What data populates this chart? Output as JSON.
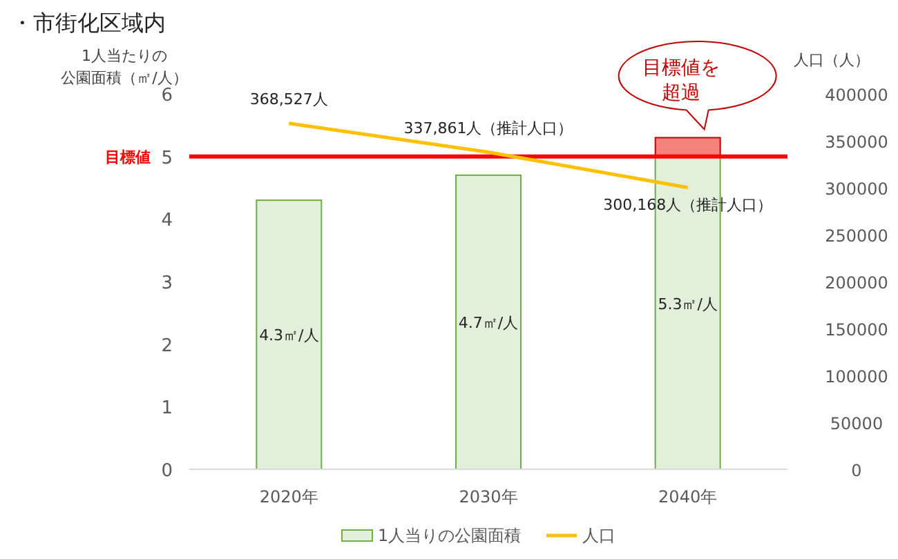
{
  "chart_data": {
    "type": "bar",
    "title": "・市街化区域内",
    "ylabel": "1人当たりの公園面積（㎡/人）",
    "y2label": "人口（人）",
    "categories": [
      "2020年",
      "2030年",
      "2040年"
    ],
    "stacked": true,
    "series": [
      {
        "name": "1人当りの公園面積",
        "color": "#e2efda",
        "values": [
          4.3,
          4.7,
          5.0
        ]
      },
      {
        "color": "#f4817b",
        "values": [
          null,
          null,
          0.3
        ]
      },
      {
        "name": "人口",
        "type": "line",
        "axis": "y2",
        "color": "#ffc000",
        "values": [
          368527,
          337861,
          300168
        ],
        "value_labels": [
          "368,527人",
          "337,861人（推計人口）",
          "300,168人（推計人口）"
        ]
      }
    ],
    "totals": [
      "4.3㎡/人",
      "4.7㎡/人",
      "5.3㎡/人"
    ],
    "ylim": [
      0,
      6
    ],
    "yticks": [
      0,
      1,
      2,
      3,
      4,
      5,
      6
    ],
    "y2lim": [
      0,
      400000
    ],
    "y2ticks": [
      0,
      50000,
      100000,
      150000,
      200000,
      250000,
      300000,
      350000,
      400000
    ],
    "ref_lines": [
      {
        "axis": "y",
        "value": 5,
        "label": "目標値",
        "color": "#ff0000"
      }
    ],
    "annotations": [
      {
        "text": "目標値を超過",
        "x": "2040年",
        "y": 5.3
      }
    ],
    "legend": "bottom",
    "grid": false
  }
}
